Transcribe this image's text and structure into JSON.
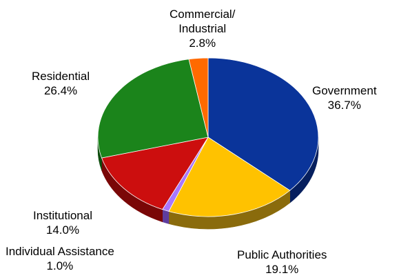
{
  "chart_data": {
    "type": "pie",
    "style": "3d",
    "slices": [
      {
        "name": "Government",
        "value": 36.7,
        "label_lines": [
          "Government"
        ],
        "value_label": "36.7%",
        "color": "#0a349a",
        "side_color": "#061f5e"
      },
      {
        "name": "Public Authorities",
        "value": 19.1,
        "label_lines": [
          "Public Authorities"
        ],
        "value_label": "19.1%",
        "color": "#ffc200",
        "side_color": "#8a6b0c"
      },
      {
        "name": "Individual Assistance",
        "value": 1.0,
        "label_lines": [
          "Individual  Assistance"
        ],
        "value_label": "1.0%",
        "color": "#a877ff",
        "side_color": "#5e3d9e"
      },
      {
        "name": "Institutional",
        "value": 14.0,
        "label_lines": [
          "Institutional"
        ],
        "value_label": "14.0%",
        "color": "#cc0e0e",
        "side_color": "#7a0707"
      },
      {
        "name": "Residential",
        "value": 26.4,
        "label_lines": [
          "Residential"
        ],
        "value_label": "26.4%",
        "color": "#1b841b",
        "side_color": "#0e4d0e"
      },
      {
        "name": "Commercial/Industrial",
        "value": 2.8,
        "label_lines": [
          "Commercial/",
          "Industrial"
        ],
        "value_label": "2.8%",
        "color": "#ff6a00",
        "side_color": "#9a3f00"
      }
    ]
  }
}
